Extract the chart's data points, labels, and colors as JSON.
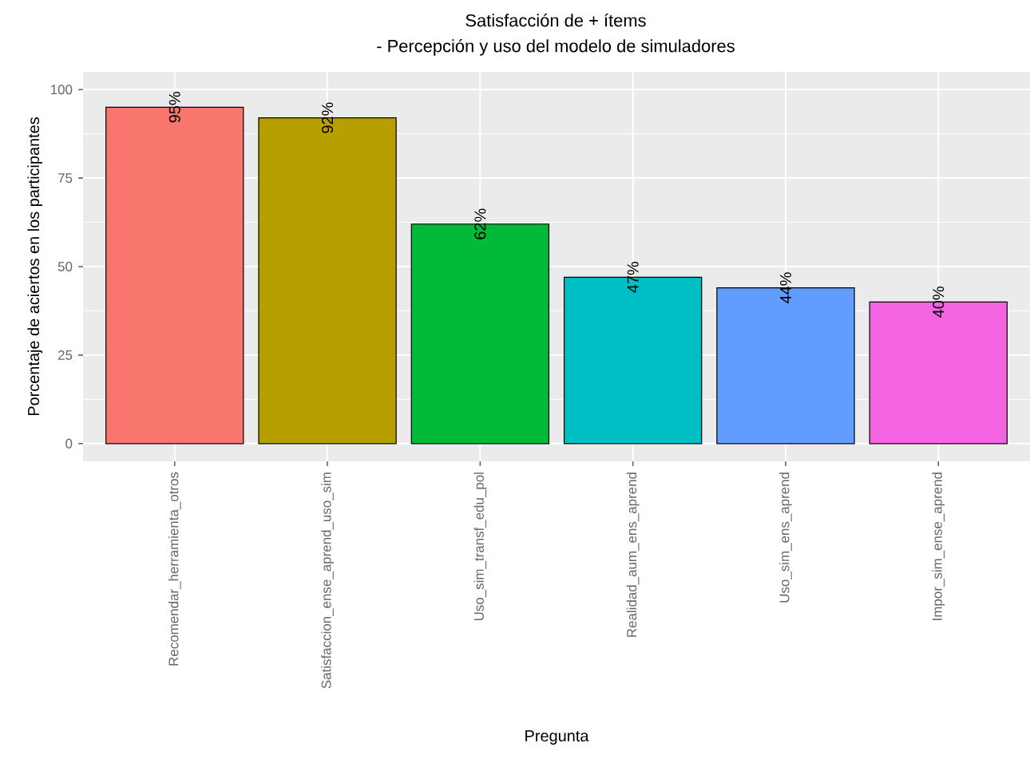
{
  "chart_data": {
    "type": "bar",
    "title": "Satisfacción de + ítems",
    "subtitle": "- Percepción y uso del modelo de simuladores",
    "xlabel": "Pregunta",
    "ylabel": "Porcentaje de aciertos en los participantes",
    "categories": [
      "Recomendar_herramienta_otros",
      "Satisfaccion_ense_aprend_uso_sim",
      "Uso_sim_transf_edu_pol",
      "Realidad_aum_ens_aprend",
      "Uso_sim_ens_aprend",
      "Impor_sim_ense_aprend"
    ],
    "values": [
      95,
      92,
      62,
      47,
      44,
      40
    ],
    "value_labels": [
      "95%",
      "92%",
      "62%",
      "47%",
      "44%",
      "40%"
    ],
    "colors": [
      "#f8766d",
      "#b79f00",
      "#00ba38",
      "#00bfc4",
      "#619cff",
      "#f564e3"
    ],
    "ylim": [
      -5,
      105
    ],
    "yticks": [
      0,
      25,
      50,
      75,
      100
    ],
    "grid": true
  }
}
